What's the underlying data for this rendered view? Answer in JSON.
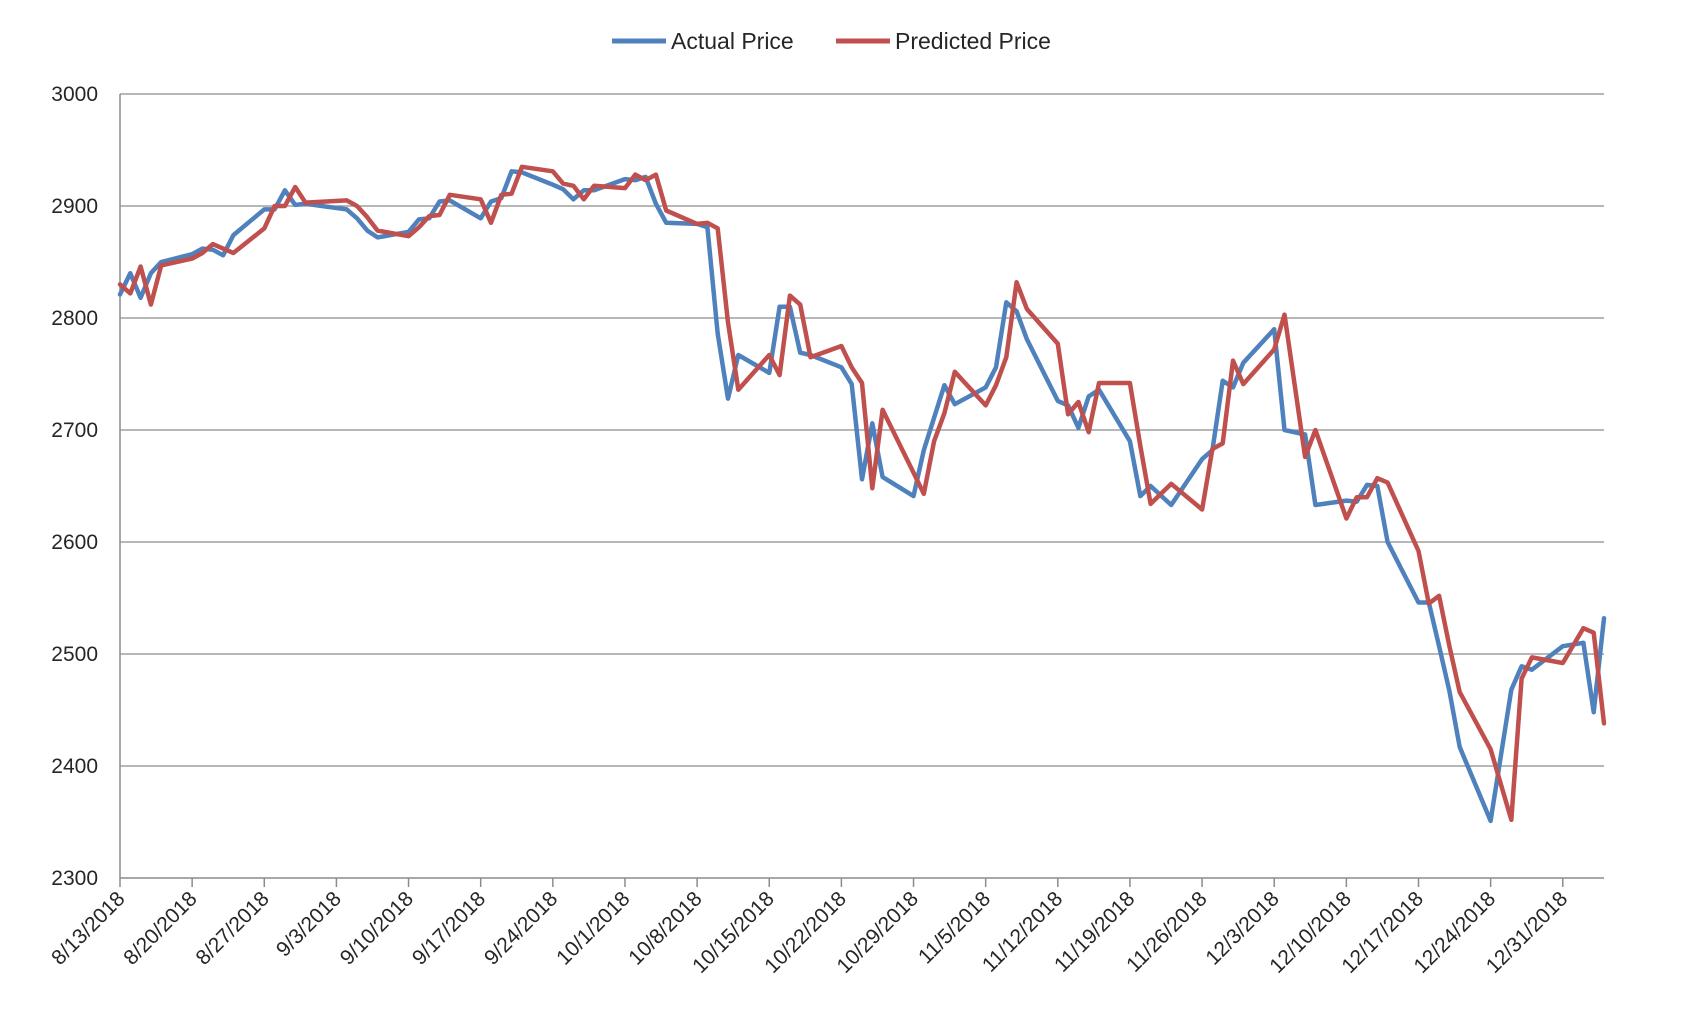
{
  "chart_data": {
    "type": "line",
    "title": "",
    "xlabel": "",
    "ylabel": "",
    "ylim": [
      2300,
      3000
    ],
    "yticks": [
      2300,
      2400,
      2500,
      2600,
      2700,
      2800,
      2900,
      3000
    ],
    "xlim": [
      "2018-08-13",
      "2019-01-04"
    ],
    "xticks": [
      {
        "date": "2018-08-13",
        "label": "8/13/2018"
      },
      {
        "date": "2018-08-20",
        "label": "8/20/2018"
      },
      {
        "date": "2018-08-27",
        "label": "8/27/2018"
      },
      {
        "date": "2018-09-03",
        "label": "9/3/2018"
      },
      {
        "date": "2018-09-10",
        "label": "9/10/2018"
      },
      {
        "date": "2018-09-17",
        "label": "9/17/2018"
      },
      {
        "date": "2018-09-24",
        "label": "9/24/2018"
      },
      {
        "date": "2018-10-01",
        "label": "10/1/2018"
      },
      {
        "date": "2018-10-08",
        "label": "10/8/2018"
      },
      {
        "date": "2018-10-15",
        "label": "10/15/2018"
      },
      {
        "date": "2018-10-22",
        "label": "10/22/2018"
      },
      {
        "date": "2018-10-29",
        "label": "10/29/2018"
      },
      {
        "date": "2018-11-05",
        "label": "11/5/2018"
      },
      {
        "date": "2018-11-12",
        "label": "11/12/2018"
      },
      {
        "date": "2018-11-19",
        "label": "11/19/2018"
      },
      {
        "date": "2018-11-26",
        "label": "11/26/2018"
      },
      {
        "date": "2018-12-03",
        "label": "12/3/2018"
      },
      {
        "date": "2018-12-10",
        "label": "12/10/2018"
      },
      {
        "date": "2018-12-17",
        "label": "12/17/2018"
      },
      {
        "date": "2018-12-24",
        "label": "12/24/2018"
      },
      {
        "date": "2018-12-31",
        "label": "12/31/2018"
      }
    ],
    "grid": "horizontal",
    "legend": "top-center",
    "series": [
      {
        "name": "Actual Price",
        "color": "#4f81bd",
        "points": [
          [
            "2018-08-13",
            2821
          ],
          [
            "2018-08-14",
            2840
          ],
          [
            "2018-08-15",
            2818
          ],
          [
            "2018-08-16",
            2840
          ],
          [
            "2018-08-17",
            2850
          ],
          [
            "2018-08-20",
            2857
          ],
          [
            "2018-08-21",
            2862
          ],
          [
            "2018-08-22",
            2861
          ],
          [
            "2018-08-23",
            2856
          ],
          [
            "2018-08-24",
            2874
          ],
          [
            "2018-08-27",
            2897
          ],
          [
            "2018-08-28",
            2897
          ],
          [
            "2018-08-29",
            2914
          ],
          [
            "2018-08-30",
            2901
          ],
          [
            "2018-08-31",
            2902
          ],
          [
            "2018-09-04",
            2897
          ],
          [
            "2018-09-05",
            2889
          ],
          [
            "2018-09-06",
            2878
          ],
          [
            "2018-09-07",
            2872
          ],
          [
            "2018-09-10",
            2877
          ],
          [
            "2018-09-11",
            2888
          ],
          [
            "2018-09-12",
            2889
          ],
          [
            "2018-09-13",
            2904
          ],
          [
            "2018-09-14",
            2905
          ],
          [
            "2018-09-17",
            2889
          ],
          [
            "2018-09-18",
            2904
          ],
          [
            "2018-09-19",
            2907
          ],
          [
            "2018-09-20",
            2931
          ],
          [
            "2018-09-21",
            2930
          ],
          [
            "2018-09-24",
            2919
          ],
          [
            "2018-09-25",
            2915
          ],
          [
            "2018-09-26",
            2906
          ],
          [
            "2018-09-27",
            2914
          ],
          [
            "2018-09-28",
            2914
          ],
          [
            "2018-10-01",
            2924
          ],
          [
            "2018-10-02",
            2923
          ],
          [
            "2018-10-03",
            2926
          ],
          [
            "2018-10-04",
            2902
          ],
          [
            "2018-10-05",
            2885
          ],
          [
            "2018-10-08",
            2884
          ],
          [
            "2018-10-09",
            2881
          ],
          [
            "2018-10-10",
            2786
          ],
          [
            "2018-10-11",
            2728
          ],
          [
            "2018-10-12",
            2767
          ],
          [
            "2018-10-15",
            2751
          ],
          [
            "2018-10-16",
            2810
          ],
          [
            "2018-10-17",
            2810
          ],
          [
            "2018-10-18",
            2769
          ],
          [
            "2018-10-19",
            2767
          ],
          [
            "2018-10-22",
            2756
          ],
          [
            "2018-10-23",
            2741
          ],
          [
            "2018-10-24",
            2656
          ],
          [
            "2018-10-25",
            2706
          ],
          [
            "2018-10-26",
            2658
          ],
          [
            "2018-10-29",
            2641
          ],
          [
            "2018-10-30",
            2682
          ],
          [
            "2018-10-31",
            2711
          ],
          [
            "2018-11-01",
            2740
          ],
          [
            "2018-11-02",
            2723
          ],
          [
            "2018-11-05",
            2738
          ],
          [
            "2018-11-06",
            2756
          ],
          [
            "2018-11-07",
            2814
          ],
          [
            "2018-11-08",
            2806
          ],
          [
            "2018-11-09",
            2781
          ],
          [
            "2018-11-12",
            2726
          ],
          [
            "2018-11-13",
            2722
          ],
          [
            "2018-11-14",
            2702
          ],
          [
            "2018-11-15",
            2730
          ],
          [
            "2018-11-16",
            2736
          ],
          [
            "2018-11-19",
            2690
          ],
          [
            "2018-11-20",
            2641
          ],
          [
            "2018-11-21",
            2650
          ],
          [
            "2018-11-23",
            2633
          ],
          [
            "2018-11-26",
            2674
          ],
          [
            "2018-11-27",
            2682
          ],
          [
            "2018-11-28",
            2744
          ],
          [
            "2018-11-29",
            2738
          ],
          [
            "2018-11-30",
            2760
          ],
          [
            "2018-12-03",
            2790
          ],
          [
            "2018-12-04",
            2700
          ],
          [
            "2018-12-06",
            2696
          ],
          [
            "2018-12-07",
            2633
          ],
          [
            "2018-12-10",
            2637
          ],
          [
            "2018-12-11",
            2636
          ],
          [
            "2018-12-12",
            2651
          ],
          [
            "2018-12-13",
            2650
          ],
          [
            "2018-12-14",
            2600
          ],
          [
            "2018-12-17",
            2546
          ],
          [
            "2018-12-18",
            2546
          ],
          [
            "2018-12-19",
            2507
          ],
          [
            "2018-12-20",
            2467
          ],
          [
            "2018-12-21",
            2417
          ],
          [
            "2018-12-24",
            2351
          ],
          [
            "2018-12-26",
            2468
          ],
          [
            "2018-12-27",
            2489
          ],
          [
            "2018-12-28",
            2486
          ],
          [
            "2018-12-31",
            2507
          ],
          [
            "2019-01-02",
            2510
          ],
          [
            "2019-01-03",
            2448
          ],
          [
            "2019-01-04",
            2532
          ]
        ]
      },
      {
        "name": "Predicted Price",
        "color": "#c0504d",
        "points": [
          [
            "2018-08-13",
            2830
          ],
          [
            "2018-08-14",
            2822
          ],
          [
            "2018-08-15",
            2846
          ],
          [
            "2018-08-16",
            2812
          ],
          [
            "2018-08-17",
            2847
          ],
          [
            "2018-08-20",
            2853
          ],
          [
            "2018-08-21",
            2858
          ],
          [
            "2018-08-22",
            2866
          ],
          [
            "2018-08-23",
            2862
          ],
          [
            "2018-08-24",
            2858
          ],
          [
            "2018-08-27",
            2880
          ],
          [
            "2018-08-28",
            2900
          ],
          [
            "2018-08-29",
            2900
          ],
          [
            "2018-08-30",
            2917
          ],
          [
            "2018-08-31",
            2903
          ],
          [
            "2018-09-04",
            2905
          ],
          [
            "2018-09-05",
            2900
          ],
          [
            "2018-09-06",
            2890
          ],
          [
            "2018-09-07",
            2878
          ],
          [
            "2018-09-10",
            2873
          ],
          [
            "2018-09-11",
            2881
          ],
          [
            "2018-09-12",
            2891
          ],
          [
            "2018-09-13",
            2892
          ],
          [
            "2018-09-14",
            2910
          ],
          [
            "2018-09-17",
            2906
          ],
          [
            "2018-09-18",
            2885
          ],
          [
            "2018-09-19",
            2910
          ],
          [
            "2018-09-20",
            2911
          ],
          [
            "2018-09-21",
            2935
          ],
          [
            "2018-09-24",
            2931
          ],
          [
            "2018-09-25",
            2920
          ],
          [
            "2018-09-26",
            2918
          ],
          [
            "2018-09-27",
            2906
          ],
          [
            "2018-09-28",
            2918
          ],
          [
            "2018-10-01",
            2916
          ],
          [
            "2018-10-02",
            2928
          ],
          [
            "2018-10-03",
            2923
          ],
          [
            "2018-10-04",
            2928
          ],
          [
            "2018-10-05",
            2896
          ],
          [
            "2018-10-08",
            2884
          ],
          [
            "2018-10-09",
            2885
          ],
          [
            "2018-10-10",
            2880
          ],
          [
            "2018-10-11",
            2796
          ],
          [
            "2018-10-12",
            2736
          ],
          [
            "2018-10-15",
            2767
          ],
          [
            "2018-10-16",
            2749
          ],
          [
            "2018-10-17",
            2820
          ],
          [
            "2018-10-18",
            2812
          ],
          [
            "2018-10-19",
            2765
          ],
          [
            "2018-10-22",
            2775
          ],
          [
            "2018-10-23",
            2756
          ],
          [
            "2018-10-24",
            2742
          ],
          [
            "2018-10-25",
            2648
          ],
          [
            "2018-10-26",
            2718
          ],
          [
            "2018-10-29",
            2662
          ],
          [
            "2018-10-30",
            2643
          ],
          [
            "2018-10-31",
            2690
          ],
          [
            "2018-11-01",
            2715
          ],
          [
            "2018-11-02",
            2752
          ],
          [
            "2018-11-05",
            2722
          ],
          [
            "2018-11-06",
            2740
          ],
          [
            "2018-11-07",
            2765
          ],
          [
            "2018-11-08",
            2832
          ],
          [
            "2018-11-09",
            2808
          ],
          [
            "2018-11-12",
            2777
          ],
          [
            "2018-11-13",
            2714
          ],
          [
            "2018-11-14",
            2725
          ],
          [
            "2018-11-15",
            2698
          ],
          [
            "2018-11-16",
            2742
          ],
          [
            "2018-11-19",
            2742
          ],
          [
            "2018-11-20",
            2686
          ],
          [
            "2018-11-21",
            2634
          ],
          [
            "2018-11-23",
            2652
          ],
          [
            "2018-11-26",
            2629
          ],
          [
            "2018-11-27",
            2683
          ],
          [
            "2018-11-28",
            2688
          ],
          [
            "2018-11-29",
            2762
          ],
          [
            "2018-11-30",
            2741
          ],
          [
            "2018-12-03",
            2772
          ],
          [
            "2018-12-04",
            2803
          ],
          [
            "2018-12-06",
            2676
          ],
          [
            "2018-12-07",
            2700
          ],
          [
            "2018-12-10",
            2621
          ],
          [
            "2018-12-11",
            2640
          ],
          [
            "2018-12-12",
            2640
          ],
          [
            "2018-12-13",
            2657
          ],
          [
            "2018-12-14",
            2653
          ],
          [
            "2018-12-17",
            2592
          ],
          [
            "2018-12-18",
            2545
          ],
          [
            "2018-12-19",
            2552
          ],
          [
            "2018-12-20",
            2507
          ],
          [
            "2018-12-21",
            2466
          ],
          [
            "2018-12-24",
            2415
          ],
          [
            "2018-12-26",
            2352
          ],
          [
            "2018-12-27",
            2478
          ],
          [
            "2018-12-28",
            2497
          ],
          [
            "2018-12-31",
            2492
          ],
          [
            "2019-01-02",
            2523
          ],
          [
            "2019-01-03",
            2519
          ],
          [
            "2019-01-04",
            2438
          ]
        ]
      }
    ]
  }
}
